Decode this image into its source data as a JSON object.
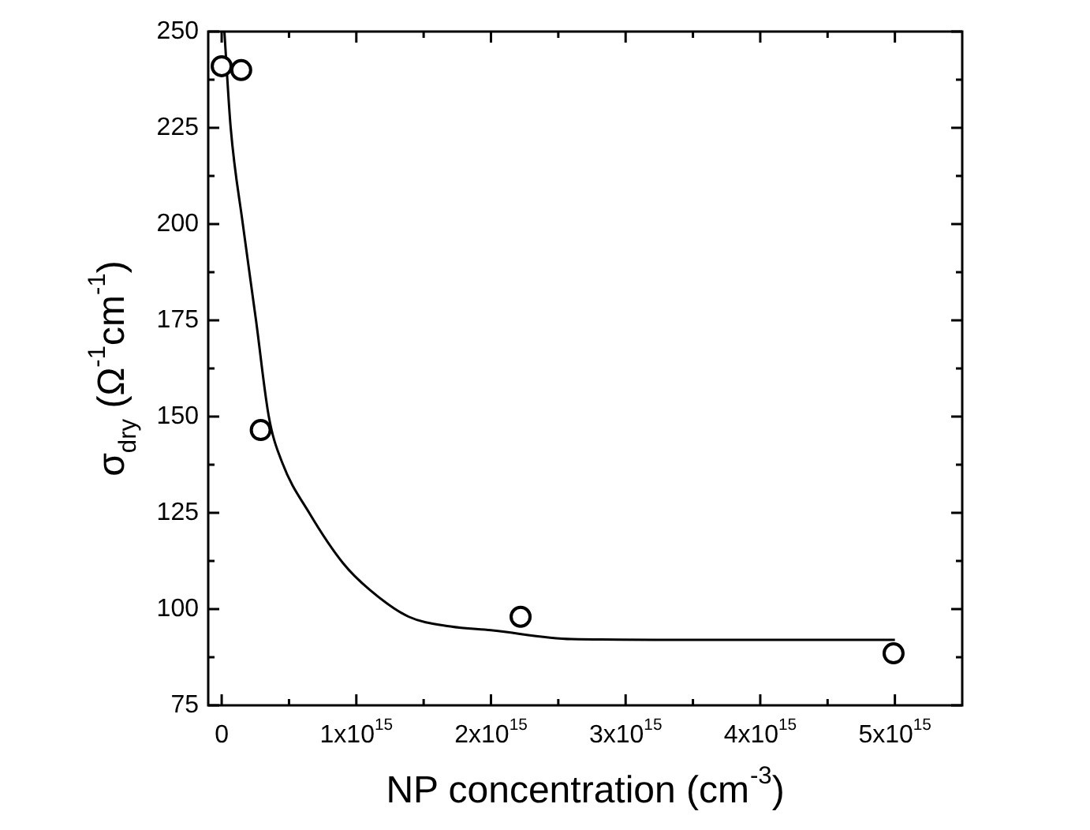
{
  "chart_data": {
    "type": "scatter",
    "xlabel": "NP concentration (cm$^{-3}$)",
    "ylabel": "σ$_{dry}$ (Ω$^{-1}$cm$^{-1}$)",
    "xlim": [
      -100000000000000.0,
      5500000000000000.0
    ],
    "xticks": [
      {
        "value": 0,
        "label": "0"
      },
      {
        "value": 500000000000000.0,
        "label": null
      },
      {
        "value": 1000000000000000.0,
        "label": "1x10$^{15}$"
      },
      {
        "value": 1500000000000000.0,
        "label": null
      },
      {
        "value": 2000000000000000.0,
        "label": "2x10$^{15}$"
      },
      {
        "value": 2500000000000000.0,
        "label": null
      },
      {
        "value": 3000000000000000.0,
        "label": "3x10$^{15}$"
      },
      {
        "value": 3500000000000000.0,
        "label": null
      },
      {
        "value": 4000000000000000.0,
        "label": "4x10$^{15}$"
      },
      {
        "value": 4500000000000000.0,
        "label": null
      },
      {
        "value": 5000000000000000.0,
        "label": "5x10$^{15}$"
      }
    ],
    "ylim": [
      75,
      250
    ],
    "yticks": [
      75,
      {
        "value": 87.5,
        "label": null
      },
      100,
      {
        "value": 112.5,
        "label": null
      },
      125,
      {
        "value": 137.5,
        "label": null
      },
      150,
      {
        "value": 162.5,
        "label": null
      },
      175,
      {
        "value": 187.5,
        "label": null
      },
      200,
      {
        "value": 212.5,
        "label": null
      },
      225,
      {
        "value": 237.5,
        "label": null
      },
      250
    ],
    "grid": false,
    "legend": false,
    "series": [
      {
        "type": "scatter",
        "marker": "circle",
        "color": "#000000",
        "x": [
          0,
          145000000000000.0,
          290000000000000.0,
          2220000000000000.0,
          4990000000000000.0
        ],
        "values": [
          241,
          240,
          146.5,
          98,
          88.5
        ]
      },
      {
        "type": "line",
        "marker": "none",
        "color": "#000000",
        "x": [
          20000000000000.0,
          67000000000000.0,
          157000000000000.0,
          255000000000000.0,
          350000000000000.0,
          450000000000000.0,
          650000000000000.0,
          900000000000000.0,
          1100000000000000.0,
          1390000000000000.0,
          1700000000000000.0,
          2000000000000000.0,
          2600000000000000.0,
          3500000000000000.0,
          5000000000000000.0
        ],
        "values": [
          250,
          225,
          200,
          175,
          150,
          138,
          125,
          112,
          105,
          98,
          95.5,
          94.5,
          92.2,
          92,
          92
        ]
      }
    ]
  }
}
